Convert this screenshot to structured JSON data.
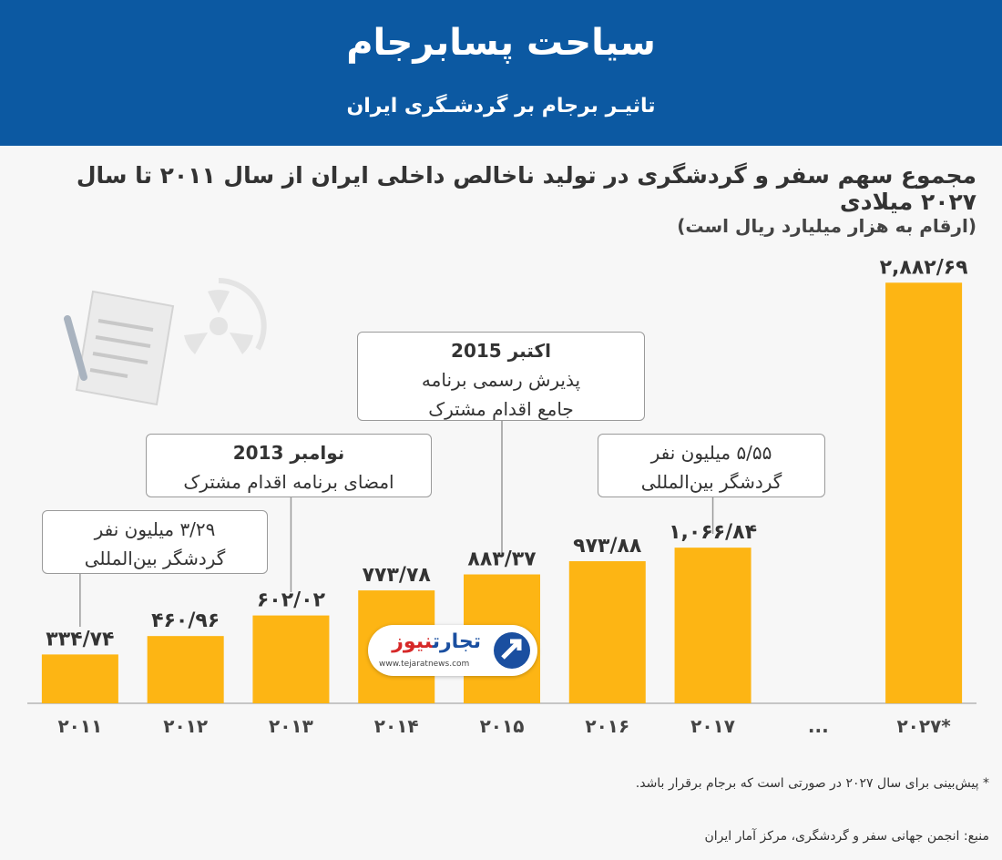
{
  "header": {
    "title": "سیاحت پسابرجام",
    "subtitle": "تاثیـر برجام بر گردشـگری ایران"
  },
  "chart_data": {
    "type": "bar",
    "title": "مجموع سهم سفر و گردشگری در تولید ناخالص داخلی ایران از سال ۲۰۱۱ تا سال ۲۰۲۷ میلادی",
    "unit_note": "(ارقام به هزار میلیارد ریال است)",
    "categories": [
      "2011",
      "2012",
      "2013",
      "2014",
      "2015",
      "2016",
      "2017",
      "...",
      "2027*"
    ],
    "values": [
      334.74,
      460.96,
      602.02,
      773.78,
      883.37,
      973.88,
      1066.84,
      null,
      2882.69
    ],
    "value_labels": [
      "۳۳۴/۷۴",
      "۴۶۰/۹۶",
      "۶۰۲/۰۲",
      "۷۷۳/۷۸",
      "۸۸۳/۳۷",
      "۹۷۳/۸۸",
      "۱,۰۶۶/۸۴",
      "",
      "۲,۸۸۲/۶۹"
    ],
    "tick_labels": [
      "۲۰۱۱",
      "۲۰۱۲",
      "۲۰۱۳",
      "۲۰۱۴",
      "۲۰۱۵",
      "۲۰۱۶",
      "۲۰۱۷",
      "...",
      "۲۰۲۷*"
    ],
    "ylim": [
      0,
      3000
    ],
    "grid": false,
    "bar_color": "#fdb514",
    "annotations": [
      {
        "category": "2011",
        "lines": [
          "۳/۲۹ میلیون نفر",
          "گردشگر بین‌المللی"
        ],
        "bold_first": false
      },
      {
        "category": "2013",
        "lines": [
          "نوامبر 2013",
          "امضای برنامه اقدام مشترک"
        ],
        "bold_first": true
      },
      {
        "category": "2015",
        "lines": [
          "اکتبر 2015",
          "پذیرش رسمی برنامه",
          "جامع اقدام مشترک"
        ],
        "bold_first": true
      },
      {
        "category": "2017",
        "lines": [
          "۵/۵۵ میلیون نفر",
          "گردشگر بین‌المللی"
        ],
        "bold_first": false
      }
    ]
  },
  "logo": {
    "name_blue": "تجارت",
    "name_red": "نیوز",
    "url": "www.tejaratnews.com"
  },
  "footnote": "* پیش‌بینی برای سال ۲۰۲۷ در صورتی است که برجام برقرار باشد.",
  "source": "منبع: انجمن جهانی سفر و گردشگری، مرکز آمار ایران",
  "colors": {
    "header_bg": "#0c59a2",
    "bar": "#fdb514",
    "background": "#f7f7f7"
  }
}
